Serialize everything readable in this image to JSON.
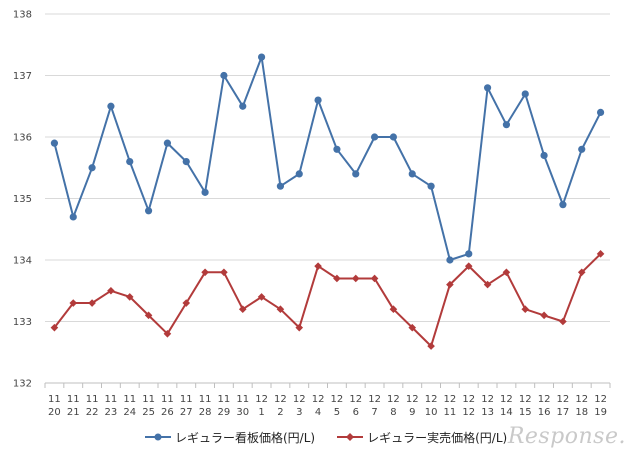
{
  "chart_data": {
    "type": "line",
    "categories": [
      [
        "11",
        "20"
      ],
      [
        "11",
        "21"
      ],
      [
        "11",
        "22"
      ],
      [
        "11",
        "23"
      ],
      [
        "11",
        "24"
      ],
      [
        "11",
        "25"
      ],
      [
        "11",
        "26"
      ],
      [
        "11",
        "27"
      ],
      [
        "11",
        "28"
      ],
      [
        "11",
        "29"
      ],
      [
        "11",
        "30"
      ],
      [
        "12",
        "1"
      ],
      [
        "12",
        "2"
      ],
      [
        "12",
        "3"
      ],
      [
        "12",
        "4"
      ],
      [
        "12",
        "5"
      ],
      [
        "12",
        "6"
      ],
      [
        "12",
        "7"
      ],
      [
        "12",
        "8"
      ],
      [
        "12",
        "9"
      ],
      [
        "12",
        "10"
      ],
      [
        "12",
        "11"
      ],
      [
        "12",
        "12"
      ],
      [
        "12",
        "13"
      ],
      [
        "12",
        "14"
      ],
      [
        "12",
        "15"
      ],
      [
        "12",
        "16"
      ],
      [
        "12",
        "17"
      ],
      [
        "12",
        "18"
      ],
      [
        "12",
        "19"
      ]
    ],
    "series": [
      {
        "name": "レギュラー看板価格(円/L)",
        "color": "#4472a8",
        "marker": "circle",
        "values": [
          135.9,
          134.7,
          135.5,
          136.5,
          135.6,
          134.8,
          135.9,
          135.6,
          135.1,
          137.0,
          136.5,
          137.3,
          135.2,
          135.4,
          136.6,
          135.8,
          135.4,
          136.0,
          136.0,
          135.4,
          135.2,
          134.0,
          134.1,
          136.8,
          136.2,
          136.7,
          135.7,
          134.9,
          135.8,
          136.4
        ]
      },
      {
        "name": "レギュラー実売価格(円/L)",
        "color": "#b23b3b",
        "marker": "diamond",
        "values": [
          132.9,
          133.3,
          133.3,
          133.5,
          133.4,
          133.1,
          132.8,
          133.3,
          133.8,
          133.8,
          133.2,
          133.4,
          133.2,
          132.9,
          133.9,
          133.7,
          133.7,
          133.7,
          133.2,
          132.9,
          132.6,
          133.6,
          133.9,
          133.6,
          133.8,
          133.2,
          133.1,
          133.0,
          133.8,
          134.1
        ]
      }
    ],
    "ylim": [
      132,
      138
    ],
    "yticks": [
      "132",
      "133",
      "134",
      "135",
      "136",
      "137",
      "138"
    ],
    "grid": true,
    "legend_position": "bottom"
  },
  "watermark": "Response."
}
